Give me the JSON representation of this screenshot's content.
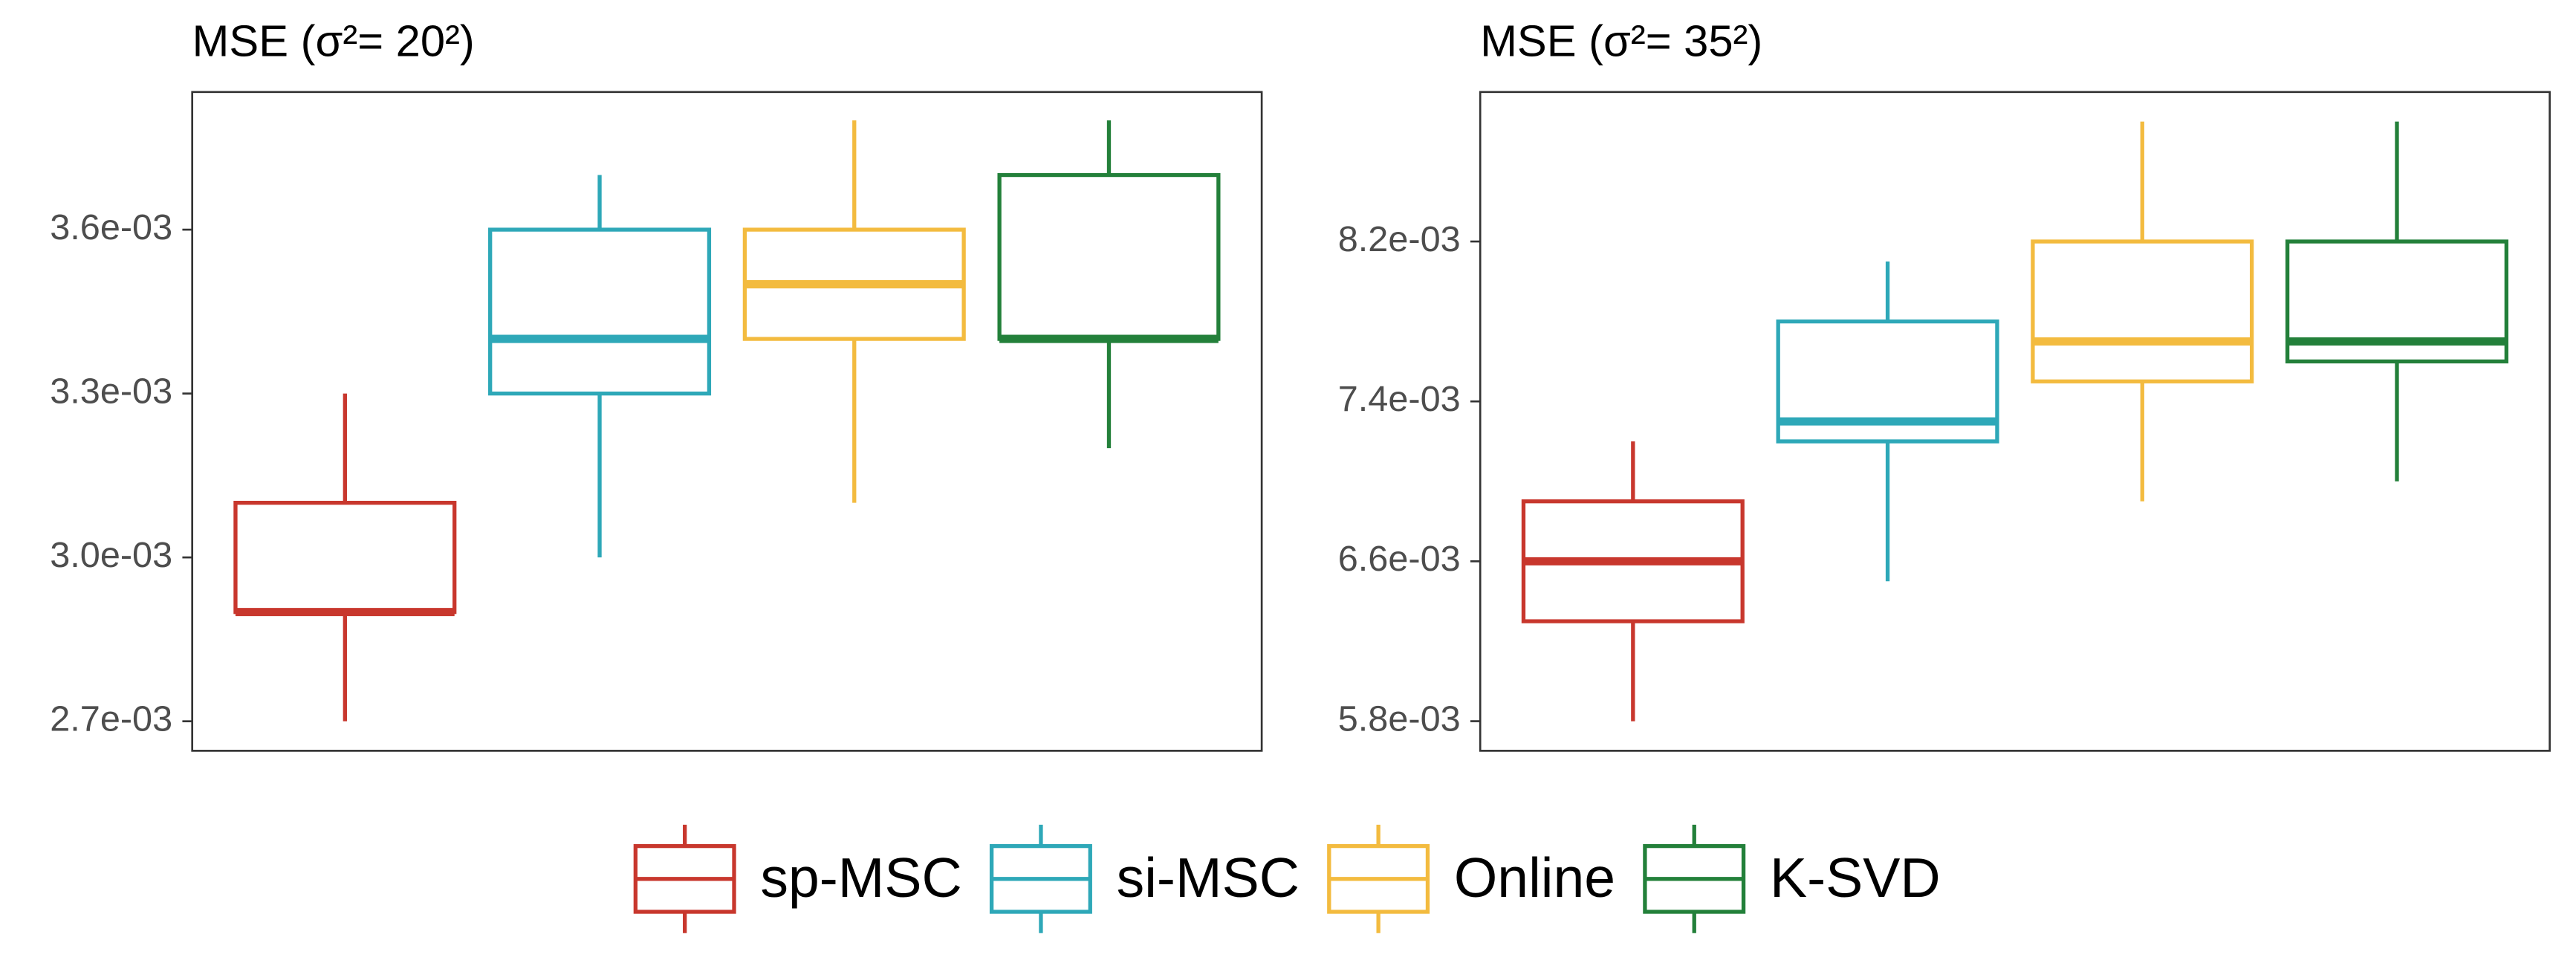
{
  "legend": [
    {
      "name": "sp-MSC",
      "color": "#c8372d"
    },
    {
      "name": "si-MSC",
      "color": "#2ea8b8"
    },
    {
      "name": "Online",
      "color": "#f3bb3f"
    },
    {
      "name": "K-SVD",
      "color": "#23803a"
    }
  ],
  "chart_data": [
    {
      "type": "box",
      "title": "MSE (σ²= 20²)",
      "ylim": [
        0.002646,
        0.003852
      ],
      "yticks": [
        {
          "value": 0.0027,
          "label": "2.7e-03"
        },
        {
          "value": 0.003,
          "label": "3.0e-03"
        },
        {
          "value": 0.0033,
          "label": "3.3e-03"
        },
        {
          "value": 0.0036,
          "label": "3.6e-03"
        }
      ],
      "boxes": [
        {
          "low": 0.0027,
          "q1": 0.0029,
          "median": 0.0029,
          "q3": 0.0031,
          "high": 0.0033
        },
        {
          "low": 0.003,
          "q1": 0.0033,
          "median": 0.0034,
          "q3": 0.0036,
          "high": 0.0037
        },
        {
          "low": 0.0031,
          "q1": 0.0034,
          "median": 0.0035,
          "q3": 0.0036,
          "high": 0.0038
        },
        {
          "low": 0.0032,
          "q1": 0.0034,
          "median": 0.0034,
          "q3": 0.0037,
          "high": 0.0038
        }
      ]
    },
    {
      "type": "box",
      "title": "MSE (σ²= 35²)",
      "ylim": [
        0.005652,
        0.008948
      ],
      "yticks": [
        {
          "value": 0.0058,
          "label": "5.8e-03"
        },
        {
          "value": 0.0066,
          "label": "6.6e-03"
        },
        {
          "value": 0.0074,
          "label": "7.4e-03"
        },
        {
          "value": 0.0082,
          "label": "8.2e-03"
        }
      ],
      "boxes": [
        {
          "low": 0.0058,
          "q1": 0.0063,
          "median": 0.0066,
          "q3": 0.0069,
          "high": 0.0072
        },
        {
          "low": 0.0065,
          "q1": 0.0072,
          "median": 0.0073,
          "q3": 0.0078,
          "high": 0.0081
        },
        {
          "low": 0.0069,
          "q1": 0.0075,
          "median": 0.0077,
          "q3": 0.0082,
          "high": 0.0088
        },
        {
          "low": 0.007,
          "q1": 0.0076,
          "median": 0.0077,
          "q3": 0.0082,
          "high": 0.0088
        }
      ]
    }
  ]
}
